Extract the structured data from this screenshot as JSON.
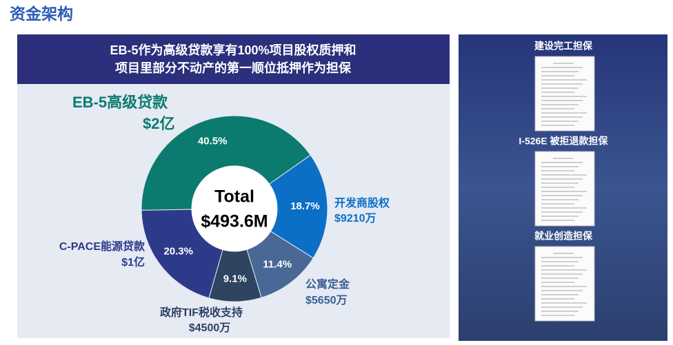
{
  "page_title": "资金架构",
  "left_panel": {
    "header": [
      "EB-5作为高级贷款享有100%项目股权质押和",
      "项目里部分不动产的第一顺位抵押作为担保"
    ]
  },
  "chart_data": {
    "type": "donut",
    "center_label": [
      "Total",
      "$493.6M"
    ],
    "categories": [
      "EB-5高级贷款",
      "开发商股权",
      "公寓定金",
      "政府TIF税收支持",
      "C-PACE能源贷款"
    ],
    "amount_labels": [
      "$2亿",
      "$9210万",
      "$5650万",
      "$4500万",
      "$1亿"
    ],
    "values": [
      40.5,
      18.7,
      11.4,
      9.1,
      20.3
    ],
    "value_labels": [
      "40.5%",
      "18.7%",
      "11.4%",
      "9.1%",
      "20.3%"
    ],
    "colors": [
      "#0b7b6f",
      "#0c6fc6",
      "#4a6896",
      "#2f4460",
      "#2d3a8a"
    ],
    "label_colors": [
      "#0b7b6f",
      "#0c6fc6",
      "#3a5e93",
      "#2f3f66",
      "#2d3a8a"
    ]
  },
  "right_panel": {
    "documents": [
      {
        "label": "建设完工担保"
      },
      {
        "label": "I-526E 被拒退款担保"
      },
      {
        "label": "就业创造担保"
      }
    ]
  }
}
